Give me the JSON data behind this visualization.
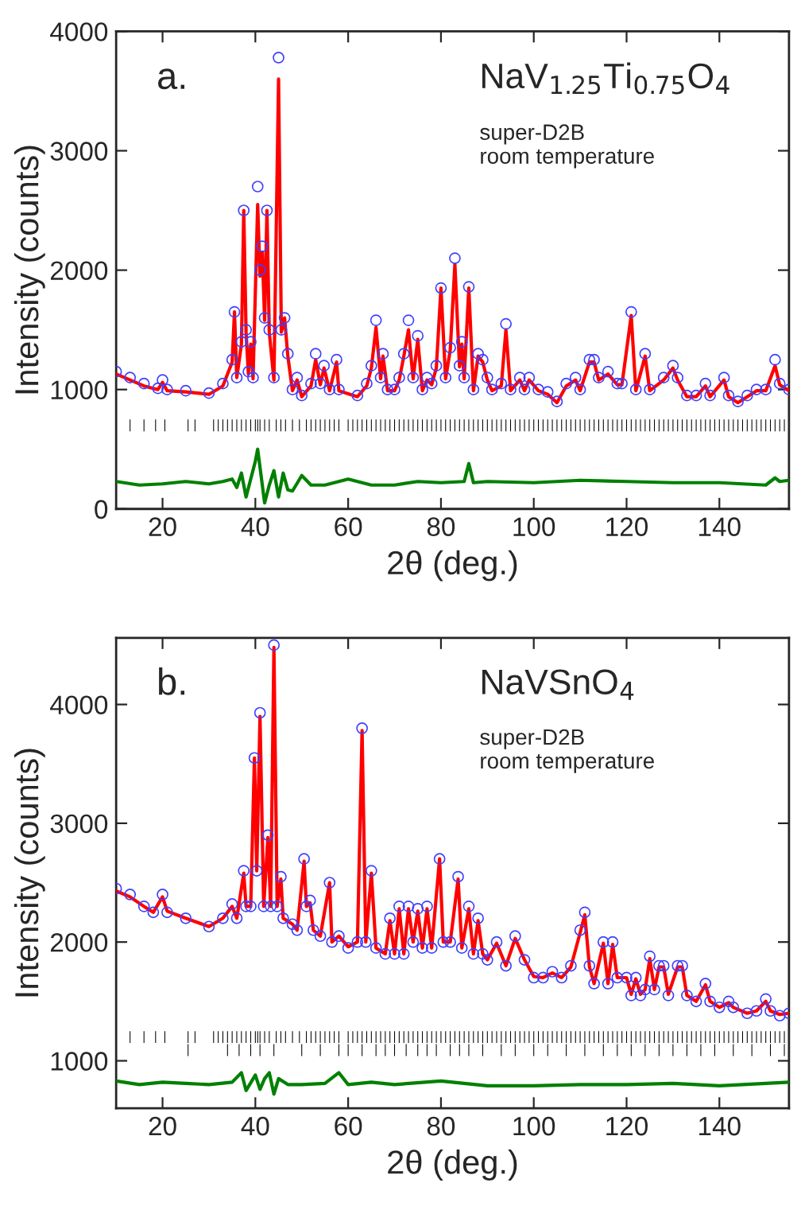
{
  "chart_data": [
    {
      "type": "line",
      "xlabel": "2θ (deg.)",
      "ylabel": "Intensity (counts)",
      "xlim": [
        10,
        155
      ],
      "xticks": [
        20,
        40,
        60,
        80,
        100,
        120,
        140
      ],
      "ylim": [
        0,
        4000
      ],
      "yticks": [
        0,
        1000,
        2000,
        3000,
        4000
      ],
      "grid": false,
      "legend": false,
      "annotations": [
        "a.",
        "NaV$_{1.25}$Ti$_{0.75}$O$_{4}$",
        "super-D2B\nroom temperature"
      ],
      "series": [
        {
          "type": "scatter",
          "marker": "circle",
          "color": "#4040ff",
          "x": [
            10,
            13,
            16,
            19,
            20,
            21,
            25,
            30,
            33,
            35,
            35.5,
            36,
            37,
            37.5,
            38,
            38.5,
            39,
            39.5,
            40.5,
            41,
            41.5,
            42,
            42.5,
            43,
            44,
            45,
            45.6,
            46.3,
            47,
            48,
            49,
            50,
            52,
            53,
            54,
            54.8,
            56,
            57.5,
            58,
            62,
            64,
            65,
            66,
            67,
            67.5,
            68.5,
            70,
            71,
            72,
            73,
            74,
            75,
            76,
            77,
            78,
            79,
            80,
            81,
            82,
            83,
            84,
            84.5,
            85,
            86,
            87,
            88,
            89,
            90,
            91,
            93,
            94,
            95,
            97,
            98,
            99,
            101,
            103,
            105,
            107,
            109,
            110,
            112,
            113,
            114,
            116,
            118,
            119,
            121,
            122,
            124,
            125,
            128,
            130,
            131,
            133,
            135,
            137,
            138,
            141,
            142,
            144,
            146,
            148,
            150,
            152,
            153,
            155
          ],
          "values": [
            1150,
            1100,
            1050,
            1010,
            1080,
            1000,
            990,
            970,
            1050,
            1250,
            1650,
            1100,
            1400,
            2500,
            1500,
            1150,
            1400,
            1100,
            2700,
            2000,
            2200,
            1600,
            2500,
            1500,
            1100,
            3780,
            1500,
            1600,
            1300,
            1000,
            1100,
            950,
            1050,
            1300,
            1050,
            1200,
            1000,
            1250,
            1000,
            950,
            1050,
            1200,
            1580,
            1100,
            1300,
            1000,
            1000,
            1100,
            1300,
            1580,
            1100,
            1450,
            1000,
            1100,
            1050,
            1200,
            1850,
            1100,
            1350,
            2100,
            1200,
            1400,
            1100,
            1860,
            1000,
            1300,
            1250,
            1100,
            1000,
            1050,
            1550,
            1000,
            1100,
            1000,
            1100,
            1000,
            980,
            900,
            1050,
            1100,
            1000,
            1250,
            1250,
            1100,
            1150,
            1050,
            1050,
            1650,
            1000,
            1300,
            1000,
            1100,
            1200,
            1100,
            950,
            950,
            1050,
            950,
            1100,
            950,
            900,
            950,
            1000,
            1000,
            1250,
            1050,
            1000
          ]
        },
        {
          "type": "line",
          "color": "#ff0000",
          "x": [
            10,
            13,
            16,
            19,
            20,
            21,
            25,
            30,
            33,
            35,
            35.5,
            36,
            37,
            37.5,
            38,
            38.5,
            39,
            39.5,
            40.5,
            41,
            41.5,
            42,
            42.5,
            43,
            44,
            45,
            45.6,
            46.3,
            47,
            48,
            49,
            50,
            52,
            53,
            54,
            54.8,
            56,
            57.5,
            58,
            62,
            64,
            65,
            66,
            67,
            67.5,
            68.5,
            70,
            71,
            72,
            73,
            74,
            75,
            76,
            77,
            78,
            79,
            80,
            81,
            82,
            83,
            84,
            84.5,
            85,
            86,
            87,
            88,
            89,
            90,
            91,
            93,
            94,
            95,
            97,
            98,
            99,
            101,
            103,
            105,
            107,
            109,
            110,
            112,
            113,
            114,
            116,
            118,
            119,
            121,
            122,
            124,
            125,
            128,
            130,
            131,
            133,
            135,
            137,
            138,
            141,
            142,
            144,
            146,
            148,
            150,
            152,
            153,
            155
          ],
          "values": [
            1130,
            1080,
            1030,
            1000,
            1060,
            990,
            980,
            960,
            1030,
            1230,
            1650,
            1100,
            1380,
            2500,
            1480,
            1130,
            1380,
            1090,
            2550,
            1950,
            2150,
            1580,
            2500,
            1480,
            1080,
            3600,
            1480,
            1600,
            1280,
            990,
            1080,
            940,
            1030,
            1250,
            1040,
            1180,
            990,
            1230,
            990,
            940,
            1030,
            1180,
            1520,
            1090,
            1280,
            990,
            990,
            1080,
            1280,
            1500,
            1090,
            1420,
            990,
            1080,
            1040,
            1180,
            1850,
            1090,
            1330,
            2050,
            1190,
            1380,
            1090,
            1850,
            990,
            1280,
            1230,
            1080,
            990,
            1030,
            1500,
            990,
            1080,
            990,
            1080,
            990,
            960,
            890,
            1030,
            1080,
            990,
            1230,
            1230,
            1080,
            1130,
            1040,
            1040,
            1620,
            990,
            1280,
            990,
            1080,
            1180,
            1080,
            940,
            940,
            1030,
            940,
            1080,
            940,
            890,
            940,
            990,
            990,
            1200,
            1040,
            990
          ]
        },
        {
          "type": "line",
          "color": "#008000",
          "x": [
            10,
            15,
            20,
            25,
            30,
            33,
            35,
            36,
            37,
            38,
            39,
            40,
            40.5,
            41,
            42,
            43,
            44,
            45,
            46,
            47,
            48,
            50,
            52,
            55,
            60,
            65,
            70,
            75,
            80,
            85,
            86,
            87,
            90,
            100,
            110,
            120,
            130,
            140,
            150,
            152,
            153,
            155
          ],
          "values": [
            230,
            200,
            210,
            230,
            210,
            230,
            250,
            180,
            300,
            100,
            250,
            400,
            500,
            350,
            50,
            200,
            320,
            100,
            300,
            160,
            150,
            280,
            200,
            200,
            250,
            200,
            200,
            230,
            220,
            230,
            380,
            220,
            230,
            220,
            240,
            230,
            220,
            220,
            200,
            260,
            230,
            240
          ]
        },
        {
          "type": "bar",
          "color": "#000000",
          "x": [
            13,
            16,
            18.5,
            20.5,
            25.5,
            27,
            31,
            32,
            33,
            34,
            35,
            36,
            37,
            38,
            39,
            40,
            40.5,
            41,
            42,
            43,
            44.5,
            45.5,
            46.5,
            48,
            49.5,
            51,
            52,
            53,
            54,
            55,
            56,
            57,
            58,
            60,
            61,
            62,
            63,
            64,
            65,
            66,
            67,
            68,
            69,
            70,
            71,
            72,
            73,
            74,
            75,
            76,
            77,
            78,
            79,
            80,
            81,
            82,
            83,
            84,
            85,
            86,
            87,
            88,
            89,
            90,
            91,
            92,
            93,
            94,
            95,
            96,
            97,
            98,
            99,
            100,
            101,
            102,
            103,
            104,
            105,
            106,
            107,
            108,
            109,
            110,
            111,
            112,
            113,
            114,
            115,
            116,
            117,
            118,
            119,
            120,
            121,
            122,
            123,
            124,
            125,
            126,
            127,
            128,
            129,
            130,
            131,
            132,
            133,
            134,
            135,
            136,
            137,
            138,
            139,
            140,
            141,
            142,
            143,
            144,
            145,
            146,
            147,
            148,
            149,
            150,
            151,
            152,
            153,
            154
          ],
          "values": [
            100,
            100,
            100,
            100,
            100,
            100,
            100,
            100,
            100,
            100,
            100,
            100,
            100,
            100,
            100,
            100,
            100,
            100,
            100,
            100,
            100,
            100,
            100,
            100,
            100,
            100,
            100,
            100,
            100,
            100,
            100,
            100,
            100,
            100,
            100,
            100,
            100,
            100,
            100,
            100,
            100,
            100,
            100,
            100,
            100,
            100,
            100,
            100,
            100,
            100,
            100,
            100,
            100,
            100,
            100,
            100,
            100,
            100,
            100,
            100,
            100,
            100,
            100,
            100,
            100,
            100,
            100,
            100,
            100,
            100,
            100,
            100,
            100,
            100,
            100,
            100,
            100,
            100,
            100,
            100,
            100,
            100,
            100,
            100,
            100,
            100,
            100,
            100,
            100,
            100,
            100,
            100,
            100,
            100,
            100,
            100,
            100,
            100,
            100,
            100,
            100,
            100,
            100,
            100,
            100,
            100,
            100,
            100,
            100,
            100,
            100,
            100,
            100,
            100,
            100,
            100,
            100,
            100,
            100,
            100,
            100,
            100,
            100,
            100,
            100,
            100,
            100,
            100
          ],
          "base": [
            650,
            650,
            650,
            650,
            650,
            650,
            650,
            650,
            650,
            650,
            650,
            650,
            650,
            650,
            650,
            650,
            650,
            650,
            650,
            650,
            650,
            650,
            650,
            650,
            650,
            650,
            650,
            650,
            650,
            650,
            650,
            650,
            650,
            650,
            650,
            650,
            650,
            650,
            650,
            650,
            650,
            650,
            650,
            650,
            650,
            650,
            650,
            650,
            650,
            650,
            650,
            650,
            650,
            650,
            650,
            650,
            650,
            650,
            650,
            650,
            650,
            650,
            650,
            650,
            650,
            650,
            650,
            650,
            650,
            650,
            650,
            650,
            650,
            650,
            650,
            650,
            650,
            650,
            650,
            650,
            650,
            650,
            650,
            650,
            650,
            650,
            650,
            650,
            650,
            650,
            650,
            650,
            650,
            650,
            650,
            650,
            650,
            650,
            650,
            650,
            650,
            650,
            650,
            650,
            650,
            650,
            650,
            650,
            650,
            650,
            650,
            650,
            650,
            650,
            650,
            650,
            650,
            650,
            650,
            650,
            650,
            650,
            650,
            650,
            650,
            650,
            650,
            650
          ]
        }
      ]
    },
    {
      "type": "line",
      "xlabel": "2θ (deg.)",
      "ylabel": "Intensity (counts)",
      "xlim": [
        10,
        155
      ],
      "xticks": [
        20,
        40,
        60,
        80,
        100,
        120,
        140
      ],
      "ylim": [
        600,
        4560
      ],
      "yticks": [
        1000,
        2000,
        3000,
        4000
      ],
      "grid": false,
      "legend": false,
      "annotations": [
        "b.",
        "NaVSnO$_{4}$",
        "super-D2B\nroom temperature"
      ],
      "series": [
        {
          "type": "scatter",
          "marker": "circle",
          "color": "#4040ff",
          "x": [
            10,
            13,
            16,
            18,
            20,
            21,
            25,
            30,
            33,
            35,
            36,
            37.5,
            38,
            39,
            39.8,
            40.3,
            41,
            41.8,
            42.7,
            43.3,
            44,
            44.7,
            45.5,
            46,
            48,
            49,
            50.5,
            51,
            51.8,
            52.5,
            54,
            56,
            56.5,
            58,
            60,
            62,
            63,
            63.8,
            65,
            66,
            68,
            69,
            70,
            71,
            72,
            73,
            74,
            75,
            76,
            77,
            78,
            79.7,
            80.5,
            82,
            83.7,
            84.5,
            86,
            87,
            88,
            89,
            90,
            92,
            94,
            96,
            98,
            100,
            102,
            104,
            106,
            108,
            110,
            111,
            112,
            113,
            115,
            116,
            117,
            118,
            120,
            121,
            122,
            123,
            124,
            125,
            126,
            127,
            128,
            129,
            131,
            132,
            133,
            135,
            137,
            138,
            140,
            142,
            143,
            146,
            148,
            150,
            151,
            153,
            155
          ],
          "values": [
            2450,
            2400,
            2300,
            2250,
            2400,
            2250,
            2200,
            2130,
            2200,
            2320,
            2200,
            2600,
            2300,
            2300,
            3550,
            2600,
            3930,
            2300,
            2900,
            2300,
            4500,
            2300,
            2550,
            2200,
            2150,
            2100,
            2700,
            2300,
            2350,
            2100,
            2050,
            2500,
            2000,
            2050,
            1950,
            2000,
            3800,
            2000,
            2600,
            1950,
            1900,
            2200,
            1900,
            2300,
            1900,
            2300,
            2000,
            2280,
            1950,
            2300,
            1950,
            2700,
            2000,
            2000,
            2550,
            1950,
            2300,
            1900,
            2200,
            1900,
            1850,
            2000,
            1800,
            2050,
            1850,
            1700,
            1700,
            1750,
            1700,
            1800,
            2100,
            2250,
            1800,
            1650,
            2000,
            1650,
            2000,
            1700,
            1700,
            1550,
            1700,
            1550,
            1600,
            1880,
            1600,
            1800,
            1800,
            1550,
            1800,
            1800,
            1550,
            1500,
            1650,
            1500,
            1450,
            1500,
            1450,
            1400,
            1420,
            1520,
            1420,
            1380,
            1400
          ]
        },
        {
          "type": "line",
          "color": "#ff0000",
          "x": [
            10,
            13,
            16,
            18,
            20,
            21,
            25,
            30,
            33,
            35,
            36,
            37.5,
            38,
            39,
            39.8,
            40.3,
            41,
            41.8,
            42.7,
            43.3,
            44,
            44.7,
            45.5,
            46,
            48,
            49,
            50.5,
            51,
            51.8,
            52.5,
            54,
            56,
            56.5,
            58,
            60,
            62,
            63,
            63.8,
            65,
            66,
            68,
            69,
            70,
            71,
            72,
            73,
            74,
            75,
            76,
            77,
            78,
            79.7,
            80.5,
            82,
            83.7,
            84.5,
            86,
            87,
            88,
            89,
            90,
            92,
            94,
            96,
            98,
            100,
            102,
            104,
            106,
            108,
            110,
            111,
            112,
            113,
            115,
            116,
            117,
            118,
            120,
            121,
            122,
            123,
            124,
            125,
            126,
            127,
            128,
            129,
            131,
            132,
            133,
            135,
            137,
            138,
            140,
            142,
            143,
            146,
            148,
            150,
            151,
            153,
            155
          ],
          "values": [
            2430,
            2380,
            2300,
            2250,
            2380,
            2260,
            2200,
            2130,
            2200,
            2300,
            2200,
            2580,
            2300,
            2300,
            3550,
            2600,
            3900,
            2300,
            2880,
            2300,
            4480,
            2300,
            2530,
            2200,
            2150,
            2100,
            2680,
            2300,
            2330,
            2100,
            2050,
            2500,
            2000,
            2050,
            1960,
            2000,
            3780,
            2000,
            2580,
            1950,
            1900,
            2180,
            1900,
            2280,
            1900,
            2280,
            2000,
            2260,
            1950,
            2280,
            1950,
            2700,
            2000,
            2000,
            2530,
            1950,
            2280,
            1900,
            2180,
            1900,
            1850,
            1990,
            1800,
            2030,
            1850,
            1710,
            1700,
            1740,
            1700,
            1790,
            2080,
            2230,
            1790,
            1650,
            1990,
            1650,
            1980,
            1700,
            1700,
            1560,
            1690,
            1560,
            1600,
            1860,
            1600,
            1790,
            1790,
            1560,
            1790,
            1790,
            1550,
            1500,
            1640,
            1500,
            1450,
            1490,
            1450,
            1400,
            1420,
            1500,
            1420,
            1390,
            1400
          ]
        },
        {
          "type": "line",
          "color": "#008000",
          "x": [
            10,
            15,
            20,
            25,
            30,
            35,
            37,
            38,
            40,
            41,
            42,
            43,
            44,
            45,
            47,
            50,
            55,
            58,
            60,
            65,
            70,
            80,
            90,
            100,
            110,
            120,
            130,
            140,
            150,
            155
          ],
          "values": [
            830,
            800,
            820,
            810,
            800,
            820,
            900,
            750,
            880,
            760,
            850,
            900,
            720,
            850,
            800,
            800,
            810,
            900,
            800,
            820,
            800,
            830,
            790,
            790,
            800,
            800,
            810,
            790,
            810,
            820
          ]
        },
        {
          "type": "bar",
          "color": "#000000",
          "x": [
            13,
            16,
            18.5,
            20.5,
            25.5,
            27,
            31,
            32,
            33,
            34,
            35,
            36,
            37,
            38,
            39,
            40,
            40.5,
            41,
            42,
            43,
            44.5,
            45.5,
            46.5,
            48,
            49.5,
            51,
            52,
            53,
            54,
            55,
            56,
            57,
            58,
            60,
            61,
            62,
            63,
            64,
            65,
            66,
            67,
            68,
            69,
            70,
            71,
            72,
            73,
            74,
            75,
            76,
            77,
            78,
            79,
            80,
            81,
            82,
            83,
            84,
            85,
            86,
            87,
            88,
            89,
            90,
            91,
            92,
            93,
            94,
            95,
            96,
            97,
            98,
            99,
            100,
            101,
            102,
            103,
            104,
            105,
            106,
            107,
            108,
            109,
            110,
            111,
            112,
            113,
            114,
            115,
            116,
            117,
            118,
            119,
            120,
            121,
            122,
            123,
            124,
            125,
            126,
            127,
            128,
            129,
            130,
            131,
            132,
            133,
            134,
            135,
            136,
            137,
            138,
            139,
            140,
            141,
            142,
            143,
            144,
            145,
            146,
            147,
            148,
            149,
            150,
            151,
            152,
            153,
            154
          ],
          "values": [
            100,
            100,
            100,
            100,
            100,
            100,
            100,
            100,
            100,
            100,
            100,
            100,
            100,
            100,
            100,
            100,
            100,
            100,
            100,
            100,
            100,
            100,
            100,
            100,
            100,
            100,
            100,
            100,
            100,
            100,
            100,
            100,
            100,
            100,
            100,
            100,
            100,
            100,
            100,
            100,
            100,
            100,
            100,
            100,
            100,
            100,
            100,
            100,
            100,
            100,
            100,
            100,
            100,
            100,
            100,
            100,
            100,
            100,
            100,
            100,
            100,
            100,
            100,
            100,
            100,
            100,
            100,
            100,
            100,
            100,
            100,
            100,
            100,
            100,
            100,
            100,
            100,
            100,
            100,
            100,
            100,
            100,
            100,
            100,
            100,
            100,
            100,
            100,
            100,
            100,
            100,
            100,
            100,
            100,
            100,
            100,
            100,
            100,
            100,
            100,
            100,
            100,
            100,
            100,
            100,
            100,
            100,
            100,
            100,
            100,
            100,
            100,
            100,
            100,
            100,
            100,
            100,
            100,
            100,
            100,
            100,
            100,
            100,
            100,
            100,
            100,
            100,
            100
          ],
          "base": [
            1150,
            1150,
            1150,
            1150,
            1150,
            1150,
            1150,
            1150,
            1150,
            1150,
            1150,
            1150,
            1150,
            1150,
            1150,
            1150,
            1150,
            1150,
            1150,
            1150,
            1150,
            1150,
            1150,
            1150,
            1150,
            1150,
            1150,
            1150,
            1150,
            1150,
            1150,
            1150,
            1150,
            1150,
            1150,
            1150,
            1150,
            1150,
            1150,
            1150,
            1150,
            1150,
            1150,
            1150,
            1150,
            1150,
            1150,
            1150,
            1150,
            1150,
            1150,
            1150,
            1150,
            1150,
            1150,
            1150,
            1150,
            1150,
            1150,
            1150,
            1150,
            1150,
            1150,
            1150,
            1150,
            1150,
            1150,
            1150,
            1150,
            1150,
            1150,
            1150,
            1150,
            1150,
            1150,
            1150,
            1150,
            1150,
            1150,
            1150,
            1150,
            1150,
            1150,
            1150,
            1150,
            1150,
            1150,
            1150,
            1150,
            1150,
            1150,
            1150,
            1150,
            1150,
            1150,
            1150,
            1150,
            1150,
            1150,
            1150,
            1150,
            1150,
            1150,
            1150,
            1150,
            1150,
            1150,
            1150,
            1150,
            1150,
            1150,
            1150,
            1150,
            1150,
            1150,
            1150,
            1150,
            1150,
            1150,
            1150,
            1150,
            1150,
            1150,
            1150,
            1150,
            1150,
            1150,
            1150
          ]
        },
        {
          "type": "bar",
          "color": "#000000",
          "x": [
            25.5,
            34,
            36.5,
            39,
            41,
            44,
            50,
            54,
            58,
            60,
            63,
            66,
            68,
            70,
            72.5,
            75,
            77,
            79,
            82,
            84,
            86,
            89,
            93,
            96,
            100,
            103,
            107,
            111,
            115,
            118,
            121,
            124,
            127,
            130,
            133,
            136,
            139,
            143,
            147,
            151,
            154
          ],
          "values": [
            100,
            100,
            100,
            100,
            100,
            100,
            100,
            100,
            100,
            100,
            100,
            100,
            100,
            100,
            100,
            100,
            100,
            100,
            100,
            100,
            100,
            100,
            100,
            100,
            100,
            100,
            100,
            100,
            100,
            100,
            100,
            100,
            100,
            100,
            100,
            100,
            100,
            100,
            100,
            100,
            100
          ],
          "base": [
            1040,
            1040,
            1040,
            1040,
            1040,
            1040,
            1040,
            1040,
            1040,
            1040,
            1040,
            1040,
            1040,
            1040,
            1040,
            1040,
            1040,
            1040,
            1040,
            1040,
            1040,
            1040,
            1040,
            1040,
            1040,
            1040,
            1040,
            1040,
            1040,
            1040,
            1040,
            1040,
            1040,
            1040,
            1040,
            1040,
            1040,
            1040,
            1040,
            1040,
            1040
          ]
        }
      ]
    }
  ]
}
